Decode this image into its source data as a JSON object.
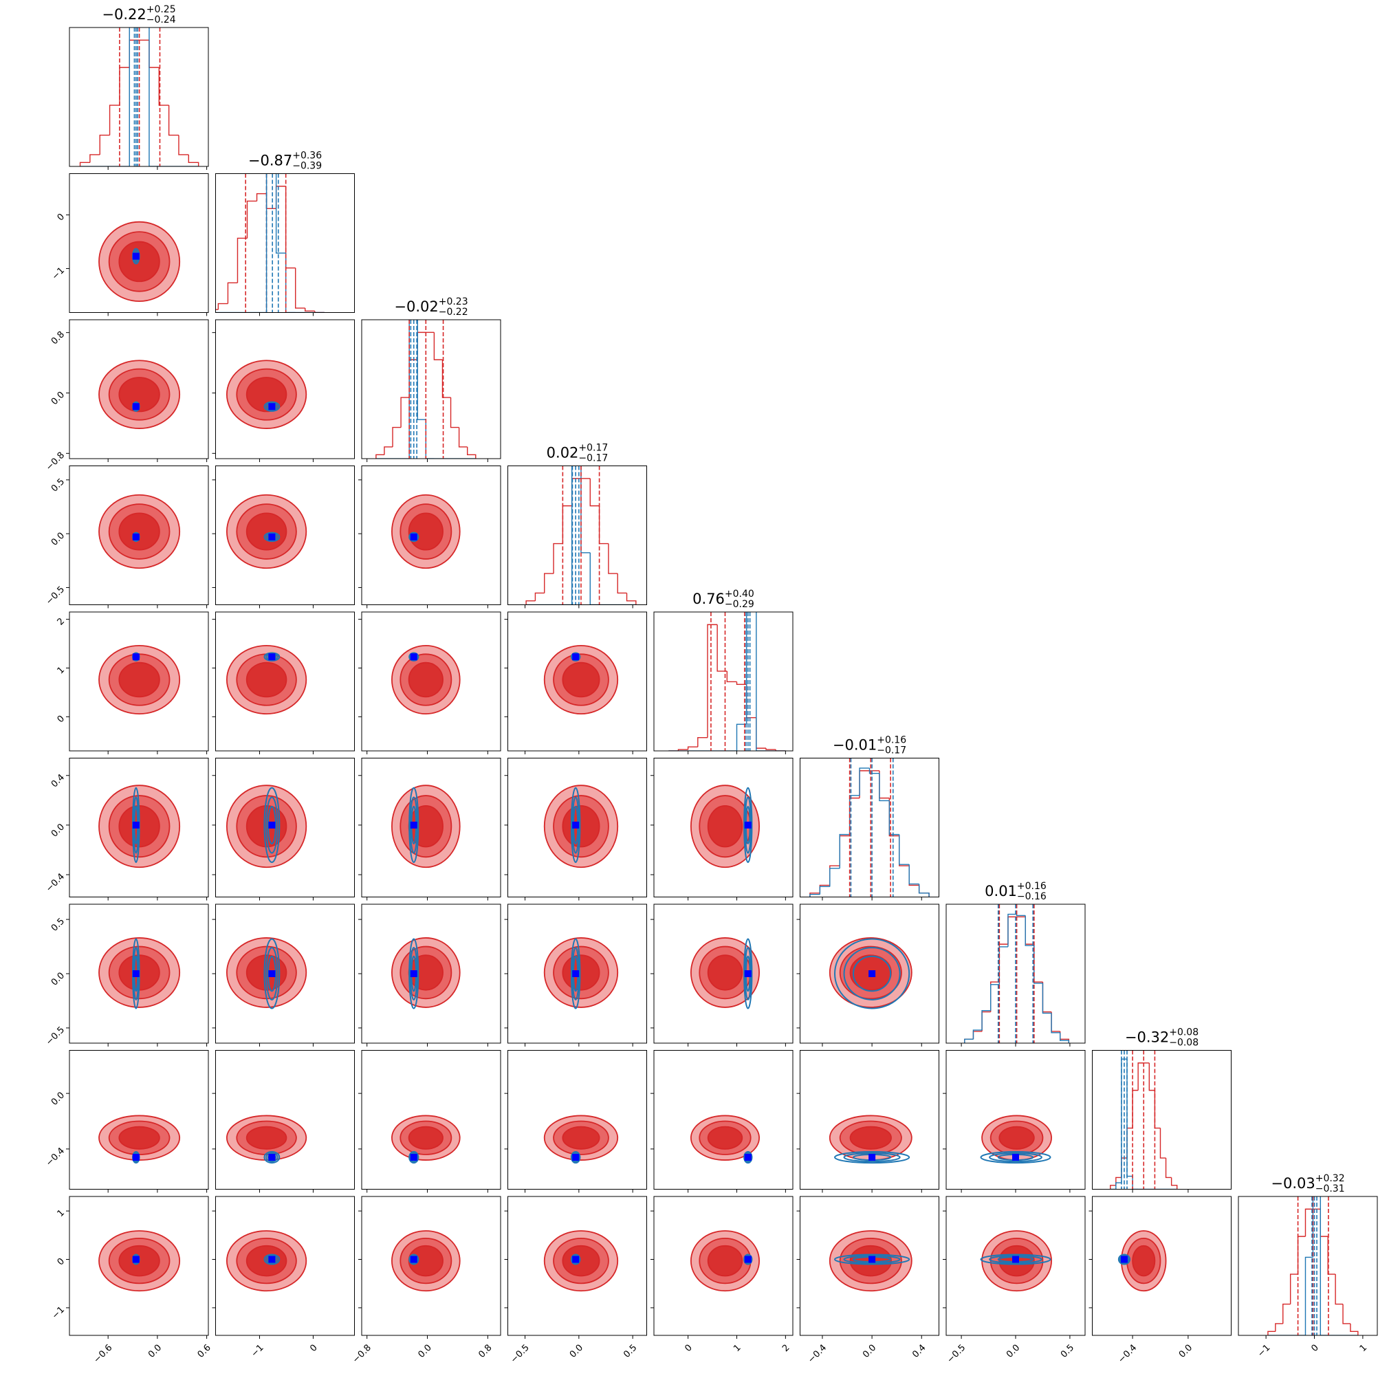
{
  "chart_data": {
    "type": "corner",
    "colors": {
      "red": "#d62728",
      "red_fills": [
        "#f3a9a9",
        "#e86666",
        "#d9302f"
      ],
      "blue": "#1f77b4",
      "truth": "#0000ff"
    },
    "parameters": [
      {
        "title": {
          "median": "−0.22",
          "upper": "+0.25",
          "lower": "−0.24"
        },
        "lim": [
          -1.07,
          0.62
        ],
        "ticks": [
          {
            "value": -0.6,
            "label": "−0.6"
          },
          {
            "value": 0,
            "label": "0.0"
          },
          {
            "value": 0.6,
            "label": "0.6"
          }
        ],
        "bins": [
          -0.94,
          -0.82,
          -0.7,
          -0.58,
          -0.46,
          -0.34,
          -0.22,
          -0.1,
          0.02,
          0.14,
          0.26,
          0.38,
          0.5
        ],
        "red_counts": [
          3,
          9,
          24,
          47,
          76,
          97,
          97,
          76,
          47,
          24,
          9,
          3
        ],
        "blue_counts": [
          0,
          0,
          0,
          0,
          0,
          260,
          150,
          0,
          0,
          0,
          0,
          0
        ],
        "red_quantiles": [
          -0.46,
          -0.22,
          0.03
        ],
        "blue_quantiles": [
          -0.28,
          -0.26,
          -0.24
        ],
        "red_mean": -0.22,
        "red_sd": 0.245,
        "truth": -0.26,
        "blue_sd": 0.02
      },
      {
        "title": {
          "median": "−0.87",
          "upper": "+0.36",
          "lower": "−0.39"
        },
        "lim": [
          -1.82,
          0.77
        ],
        "ticks": [
          {
            "value": -1,
            "label": "−1"
          },
          0
        ],
        "bins": [
          -1.95,
          -1.77,
          -1.59,
          -1.41,
          -1.23,
          -1.05,
          -0.87,
          -0.69,
          -0.51,
          -0.33,
          -0.15,
          0.03,
          0.21
        ],
        "red_counts": [
          2,
          6,
          20,
          50,
          75,
          80,
          70,
          85,
          30,
          3,
          1,
          0
        ],
        "blue_counts": [
          0,
          0,
          0,
          0,
          0,
          0,
          140,
          40,
          0,
          0,
          0,
          0
        ],
        "red_quantiles": [
          -1.26,
          -0.87,
          -0.51
        ],
        "blue_quantiles": [
          -0.87,
          -0.76,
          -0.65
        ],
        "red_mean": -0.87,
        "red_sd": 0.37,
        "truth": -0.77,
        "blue_sd": 0.07
      },
      {
        "title": {
          "median": "−0.02",
          "upper": "+0.23",
          "lower": "−0.22"
        },
        "lim": [
          -0.87,
          0.97
        ],
        "ticks": [
          {
            "value": -0.8,
            "label": "−0.8"
          },
          {
            "value": 0,
            "label": "0.0"
          },
          {
            "value": 0.8,
            "label": "0.8"
          }
        ],
        "bins": [
          -0.68,
          -0.57,
          -0.46,
          -0.35,
          -0.24,
          -0.13,
          -0.02,
          0.09,
          0.2,
          0.31,
          0.42,
          0.53,
          0.64
        ],
        "red_counts": [
          3,
          9,
          24,
          47,
          76,
          97,
          97,
          76,
          47,
          24,
          9,
          3
        ],
        "blue_counts": [
          0,
          0,
          0,
          0,
          220,
          30,
          0,
          0,
          0,
          0,
          0,
          0
        ],
        "red_quantiles": [
          -0.24,
          -0.02,
          0.21
        ],
        "blue_quantiles": [
          -0.22,
          -0.18,
          -0.14
        ],
        "red_mean": -0.02,
        "red_sd": 0.225,
        "truth": -0.18,
        "blue_sd": 0.03
      },
      {
        "title": {
          "median": "0.02",
          "upper": "+0.17",
          "lower": "−0.17"
        },
        "lim": [
          -0.66,
          0.63
        ],
        "ticks": [
          {
            "value": -0.5,
            "label": "−0.5"
          },
          {
            "value": 0,
            "label": "0.0"
          },
          {
            "value": 0.5,
            "label": "0.5"
          }
        ],
        "bins": [
          -0.49,
          -0.405,
          -0.32,
          -0.235,
          -0.15,
          -0.065,
          0.02,
          0.105,
          0.19,
          0.275,
          0.36,
          0.445,
          0.53
        ],
        "red_counts": [
          3,
          9,
          24,
          47,
          76,
          97,
          97,
          76,
          47,
          24,
          9,
          3
        ],
        "blue_counts": [
          0,
          0,
          0,
          0,
          0,
          240,
          40,
          0,
          0,
          0,
          0,
          0
        ],
        "red_quantiles": [
          -0.15,
          0.02,
          0.19
        ],
        "blue_quantiles": [
          -0.06,
          -0.03,
          0.0
        ],
        "red_mean": 0.02,
        "red_sd": 0.17,
        "truth": -0.03,
        "blue_sd": 0.02
      },
      {
        "title": {
          "median": "0.76",
          "upper": "+0.40",
          "lower": "−0.29"
        },
        "lim": [
          -0.7,
          2.15
        ],
        "ticks": [
          0,
          1,
          2
        ],
        "bins": [
          -0.4,
          -0.2,
          0,
          0.2,
          0.4,
          0.6,
          0.8,
          1.0,
          1.2,
          1.4,
          1.6,
          1.8,
          2.0
        ],
        "red_counts": [
          0,
          1,
          3,
          10,
          95,
          60,
          52,
          50,
          25,
          2,
          1,
          0
        ],
        "blue_counts": [
          0,
          0,
          0,
          0,
          0,
          0,
          0,
          20,
          220,
          0,
          0,
          0
        ],
        "red_quantiles": [
          0.47,
          0.76,
          1.16
        ],
        "blue_quantiles": [
          1.19,
          1.23,
          1.27
        ],
        "red_mean": 0.76,
        "red_sd": 0.35,
        "truth": 1.23,
        "blue_sd": 0.04
      },
      {
        "title": {
          "median": "−0.01",
          "upper": "+0.16",
          "lower": "−0.17"
        },
        "lim": [
          -0.58,
          0.54
        ],
        "ticks": [
          {
            "value": -0.4,
            "label": "−0.4"
          },
          {
            "value": 0,
            "label": "0.0"
          },
          {
            "value": 0.4,
            "label": "0.4"
          }
        ],
        "bins": [
          -0.5,
          -0.42,
          -0.34,
          -0.26,
          -0.18,
          -0.1,
          -0.02,
          0.06,
          0.14,
          0.22,
          0.3,
          0.38,
          0.46
        ],
        "red_counts": [
          3,
          9,
          24,
          47,
          76,
          97,
          97,
          76,
          47,
          24,
          9,
          3
        ],
        "blue_counts": [
          2,
          8,
          22,
          48,
          78,
          99,
          95,
          74,
          48,
          25,
          10,
          3
        ],
        "red_quantiles": [
          -0.18,
          -0.01,
          0.15
        ],
        "blue_quantiles": [
          -0.17,
          0.0,
          0.17
        ],
        "red_mean": -0.01,
        "red_sd": 0.165,
        "truth": 0.0,
        "blue_sd": 0.15
      },
      {
        "title": {
          "median": "0.01",
          "upper": "+0.16",
          "lower": "−0.16"
        },
        "lim": [
          -0.64,
          0.64
        ],
        "ticks": [
          {
            "value": -0.5,
            "label": "−0.5"
          },
          {
            "value": 0,
            "label": "0.0"
          },
          {
            "value": 0.5,
            "label": "0.5"
          }
        ],
        "bins": [
          -0.47,
          -0.39,
          -0.31,
          -0.23,
          -0.15,
          -0.07,
          0.01,
          0.09,
          0.17,
          0.25,
          0.33,
          0.41,
          0.49
        ],
        "red_counts": [
          3,
          9,
          24,
          47,
          76,
          97,
          97,
          76,
          47,
          24,
          9,
          3
        ],
        "blue_counts": [
          3,
          10,
          25,
          45,
          74,
          99,
          98,
          75,
          46,
          23,
          8,
          2
        ],
        "red_quantiles": [
          -0.15,
          0.01,
          0.17
        ],
        "blue_quantiles": [
          -0.16,
          0.0,
          0.16
        ],
        "red_mean": 0.01,
        "red_sd": 0.16,
        "truth": 0.0,
        "blue_sd": 0.16
      },
      {
        "title": {
          "median": "−0.32",
          "upper": "+0.08",
          "lower": "−0.08"
        },
        "lim": [
          -0.69,
          0.31
        ],
        "ticks": [
          {
            "value": -0.4,
            "label": "−0.4"
          },
          {
            "value": 0,
            "label": "0.0"
          }
        ],
        "bins": [
          -0.56,
          -0.52,
          -0.48,
          -0.44,
          -0.4,
          -0.36,
          -0.32,
          -0.28,
          -0.24,
          -0.2,
          -0.16,
          -0.12,
          -0.08
        ],
        "red_counts": [
          3,
          9,
          24,
          47,
          76,
          97,
          97,
          76,
          47,
          24,
          9,
          3
        ],
        "blue_counts": [
          0,
          5,
          100,
          10,
          0,
          0,
          0,
          0,
          0,
          0,
          0,
          0
        ],
        "red_quantiles": [
          -0.4,
          -0.32,
          -0.24
        ],
        "blue_quantiles": [
          -0.48,
          -0.46,
          -0.44
        ],
        "red_mean": -0.32,
        "red_sd": 0.08,
        "truth": -0.46,
        "blue_sd": 0.02
      },
      {
        "title": {
          "median": "−0.03",
          "upper": "+0.32",
          "lower": "−0.31"
        },
        "lim": [
          -1.57,
          1.3
        ],
        "ticks": [
          {
            "value": -1,
            "label": "−1"
          },
          0,
          1
        ],
        "bins": [
          -0.96,
          -0.805,
          -0.65,
          -0.495,
          -0.34,
          -0.185,
          -0.03,
          0.125,
          0.28,
          0.435,
          0.59,
          0.745,
          0.9
        ],
        "red_counts": [
          3,
          9,
          24,
          47,
          76,
          97,
          97,
          76,
          47,
          24,
          9,
          3
        ],
        "blue_counts": [
          0,
          0,
          0,
          0,
          0,
          60,
          180,
          0,
          0,
          0,
          0,
          0
        ],
        "red_quantiles": [
          -0.34,
          -0.03,
          0.29
        ],
        "blue_quantiles": [
          -0.05,
          0.0,
          0.05
        ],
        "red_mean": -0.03,
        "red_sd": 0.31,
        "truth": 0.0,
        "blue_sd": 0.05
      }
    ]
  }
}
